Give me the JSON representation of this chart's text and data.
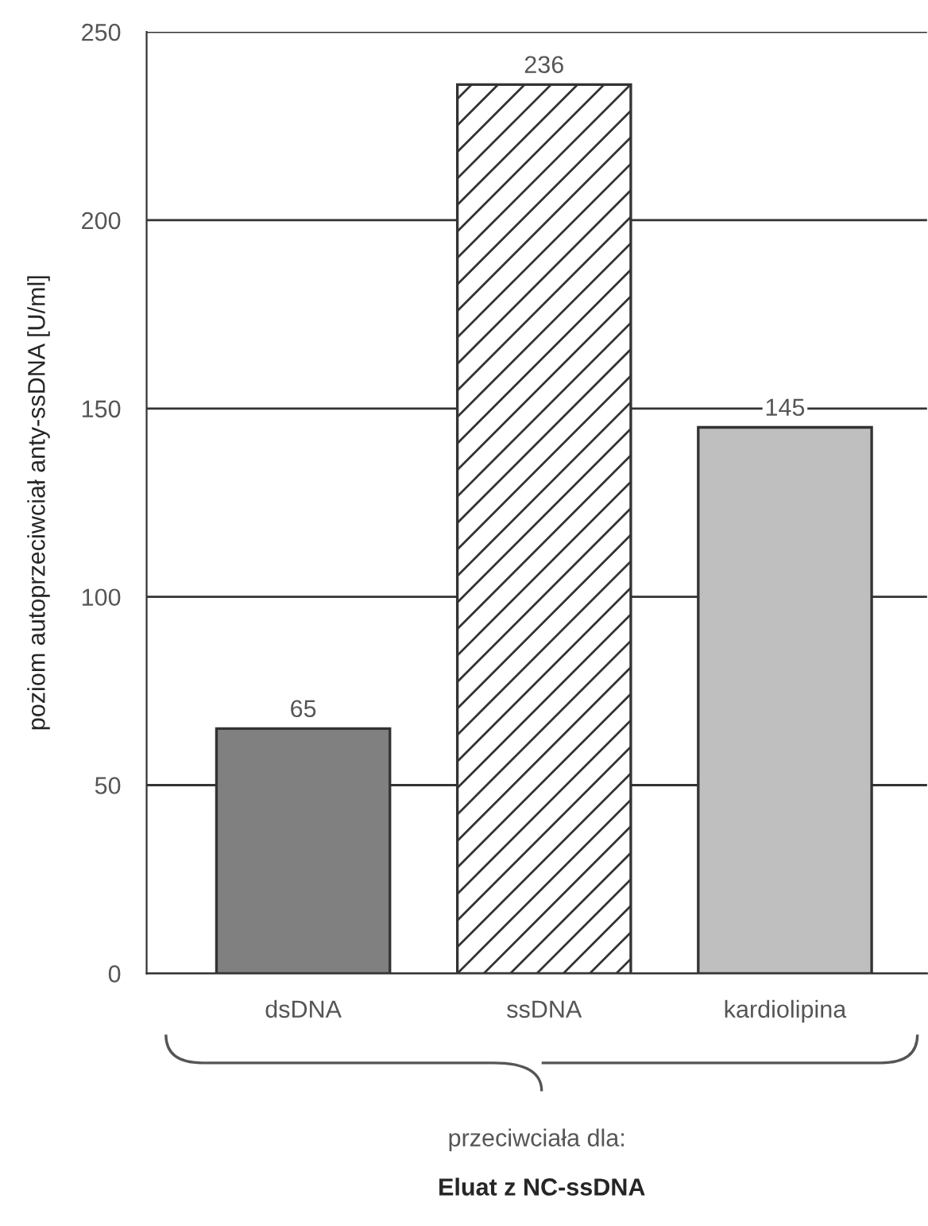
{
  "chart_data": {
    "type": "bar",
    "categories": [
      "dsDNA",
      "ssDNA",
      "kardiolipina"
    ],
    "values": [
      65,
      236,
      145
    ],
    "colors": [
      "#808080",
      "#ffffff",
      "#bfbfbf"
    ],
    "ylabel": "poziom autoprzeciwciał anty-ssDNA [U/ml]",
    "xlabel": "przeciwciała dla:",
    "annotations": [
      "Eluat z NC-ssDNA"
    ],
    "ylim": [
      0,
      250
    ],
    "yticks": [
      0,
      50,
      100,
      150,
      200,
      250
    ],
    "grid": "y",
    "data_labels": true
  }
}
